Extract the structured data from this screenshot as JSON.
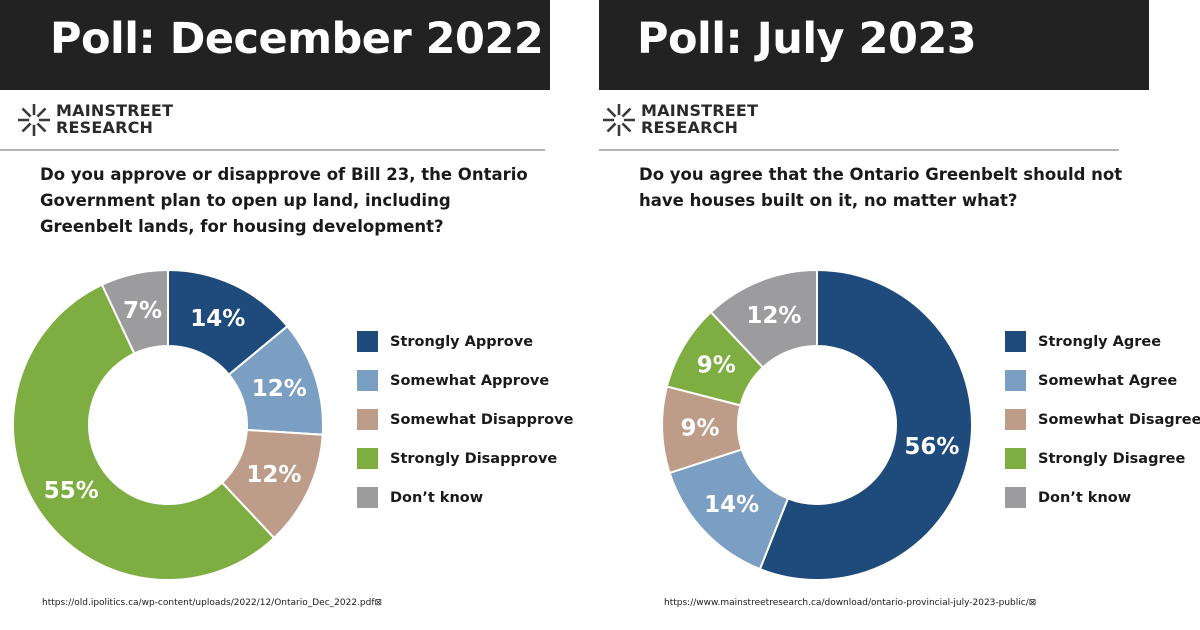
{
  "colors": {
    "banner": "#222222",
    "dark_blue": "#1f4a7c",
    "light_blue": "#7b9fc2",
    "tan": "#bd9d89",
    "green": "#7eae41",
    "grey": "#9c9c9e"
  },
  "logo": {
    "line1": "MAINSTREET",
    "line2": "RESEARCH",
    "icon": "starburst-logo-icon"
  },
  "panels": [
    {
      "banner_title": "Poll: December 2022",
      "question": "Do you approve or disapprove of Bill 23, the Ontario Government plan to open up land, including Greenbelt lands, for housing development?",
      "source": "https://old.ipolitics.ca/wp-content/uploads/2022/12/Ontario_Dec_2022.pdf⊠",
      "legend": [
        "Strongly Approve",
        "Somewhat Approve",
        "Somewhat Disapprove",
        "Strongly Disapprove",
        "Don’t know"
      ]
    },
    {
      "banner_title": "Poll: July 2023",
      "question": "Do you agree that the Ontario Greenbelt should not have houses built on it, no matter what?",
      "source": "https://www.mainstreetresearch.ca/download/ontario-provincial-july-2023-public/⊠",
      "legend": [
        "Strongly Agree",
        "Somewhat Agree",
        "Somewhat Disagree",
        "Strongly Disagree",
        "Don’t know"
      ]
    }
  ],
  "chart_data": [
    {
      "type": "pie",
      "title": "Poll: December 2022",
      "categories": [
        "Strongly Approve",
        "Somewhat Approve",
        "Somewhat Disapprove",
        "Strongly Disapprove",
        "Don’t know"
      ],
      "values": [
        14,
        12,
        12,
        55,
        7
      ],
      "labels": [
        "14%",
        "12%",
        "12%",
        "55%",
        "7%"
      ],
      "colors": [
        "#1f4a7c",
        "#7b9fc2",
        "#bd9d89",
        "#7eae41",
        "#9c9c9e"
      ],
      "donut": true,
      "legend_position": "right"
    },
    {
      "type": "pie",
      "title": "Poll: July 2023",
      "categories": [
        "Strongly Agree",
        "Somewhat Agree",
        "Somewhat Disagree",
        "Strongly Disagree",
        "Don’t know"
      ],
      "values": [
        56,
        14,
        9,
        9,
        12
      ],
      "labels": [
        "56%",
        "14%",
        "9%",
        "9%",
        "12%"
      ],
      "colors": [
        "#1f4a7c",
        "#7b9fc2",
        "#bd9d89",
        "#7eae41",
        "#9c9c9e"
      ],
      "donut": true,
      "legend_position": "right"
    }
  ]
}
